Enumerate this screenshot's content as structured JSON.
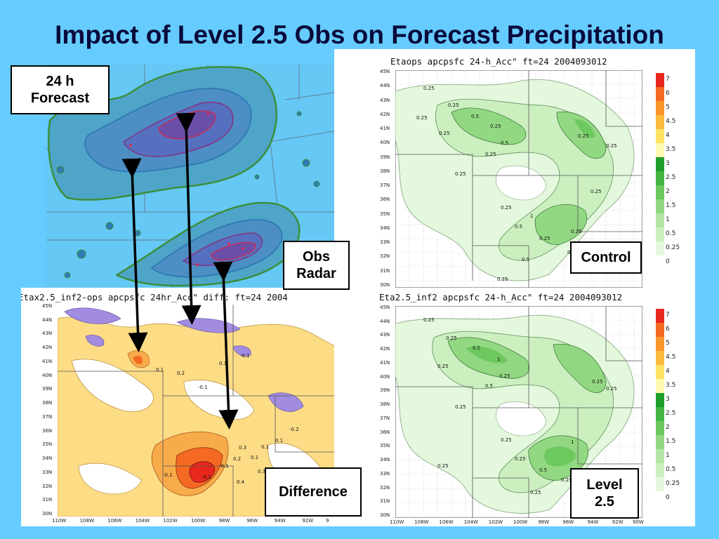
{
  "slide": {
    "title": "Impact of Level 2.5 Obs on Forecast Precipitation"
  },
  "callouts": {
    "forecast": [
      "24 h",
      "Forecast"
    ],
    "obs_radar": [
      "Obs",
      "Radar"
    ],
    "control": "Control",
    "difference": "Difference",
    "level25": [
      "Level",
      "2.5"
    ]
  },
  "panels": {
    "control": {
      "title": "Etaops apcpsfc 24-h_Acc\" ft=24 2004093012"
    },
    "level25": {
      "title": "Eta2.5_inf2 apcpsfc 24-h_Acc\" ft=24 2004093012"
    },
    "difference": {
      "title": "Etax2.5_inf2-ops apcpsfc 24hr_Acc\" diff: ft=24 2004"
    }
  },
  "axes": {
    "lat_labels": [
      "45N",
      "44N",
      "43N",
      "42N",
      "41N",
      "40N",
      "39N",
      "38N",
      "37N",
      "36N",
      "35N",
      "34N",
      "33N",
      "32N",
      "31N",
      "30N"
    ],
    "lon_labels_right": [
      "110W",
      "108W",
      "106W",
      "104W",
      "102W",
      "100W",
      "98W",
      "96W",
      "94W",
      "92W",
      "90W"
    ],
    "lon_labels_left": [
      "110W",
      "108W",
      "106W",
      "104W",
      "102W",
      "100W",
      "98W",
      "96W",
      "94W",
      "92W",
      "9"
    ]
  },
  "colorbar": {
    "labels": [
      "7",
      "6",
      "5",
      "4.5",
      "4",
      "3.5",
      "3",
      "2.5",
      "2",
      "1.5",
      "1",
      "0.5",
      "0.25",
      "0"
    ],
    "colors": [
      "#e8281e",
      "#f46a22",
      "#f8962c",
      "#fbbb3e",
      "#fde264",
      "#fef9b0",
      "#1f9e2e",
      "#42b543",
      "#6cc85f",
      "#92d882",
      "#b4e5a6",
      "#ccefc0",
      "#e4f8de",
      "#ffffff"
    ]
  },
  "contour_labels": {
    "control": [
      "0.25",
      "0.25",
      "0.5",
      "0.25",
      "0.25",
      "0.5",
      "0.25",
      "0.25",
      "0.25",
      "0.5",
      "0.25",
      "0.25",
      "0.25",
      "0.5",
      "0.5",
      "0.25",
      "1",
      "0.25",
      "0.25",
      "0.25"
    ],
    "level25": [
      "0.25",
      "0.25",
      "0.5",
      "1",
      "0.25",
      "0.25",
      "0.5",
      "0.25",
      "0.25",
      "0.25",
      "0.5",
      "0.25",
      "1",
      "0.25",
      "0.25",
      "0.25",
      "0.25"
    ],
    "difference": [
      "0.1",
      "-0.1",
      "0.1",
      "0.2",
      "-0.1",
      "0.3",
      "-0.1",
      "0.2",
      "0.1",
      "0.4",
      "0.1",
      "-0.2",
      "0.3",
      "-0.1",
      "0.1",
      "-0.1"
    ]
  },
  "colors": {
    "background": "#66ccff",
    "radar_bg": "#66c8f4",
    "diff_positive": "#fddc86",
    "diff_strong": "#e8281e",
    "diff_negative": "#a28ce0",
    "precip_light": "#ccefc0",
    "precip_mid": "#92d882",
    "precip_heavy": "#6cc85f"
  }
}
